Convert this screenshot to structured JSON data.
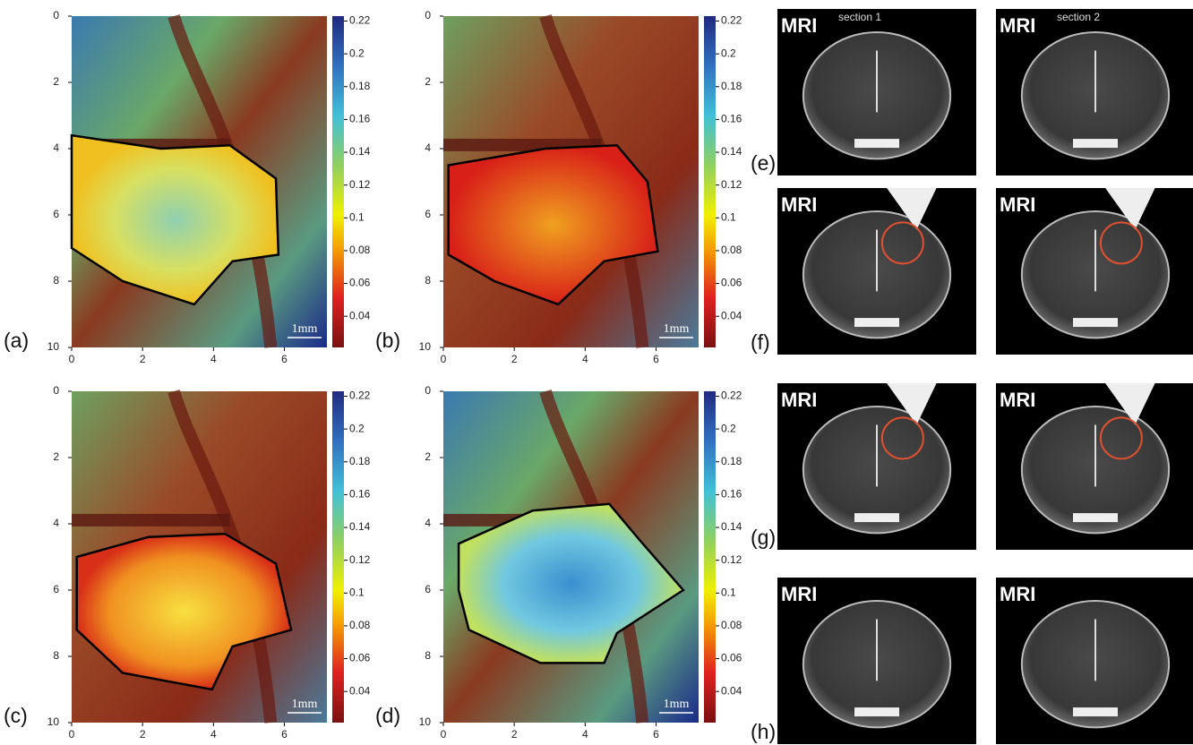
{
  "axes": {
    "xlim": [
      0,
      7.2
    ],
    "ylim": [
      0,
      10
    ],
    "xticks": [
      0,
      2,
      4,
      6
    ],
    "yticks": [
      0,
      2,
      4,
      6,
      8,
      10
    ]
  },
  "colorbar": {
    "lim": [
      0.021,
      0.223
    ],
    "ticks": [
      0.04,
      0.06,
      0.08,
      0.1,
      0.12,
      0.14,
      0.16,
      0.18,
      0.2,
      0.22
    ]
  },
  "panels": [
    {
      "label": "(a)",
      "scale_bar": "1mm"
    },
    {
      "label": "(b)",
      "scale_bar": "1mm"
    },
    {
      "label": "(c)",
      "scale_bar": "1mm"
    },
    {
      "label": "(d)",
      "scale_bar": "1mm"
    }
  ],
  "mri": {
    "columns": [
      "section 1",
      "section 2"
    ],
    "rows": [
      {
        "label": "(e)",
        "tag": "MRI"
      },
      {
        "label": "(f)",
        "tag": "MRI"
      },
      {
        "label": "(g)",
        "tag": "MRI"
      },
      {
        "label": "(h)",
        "tag": "MRI"
      }
    ]
  }
}
